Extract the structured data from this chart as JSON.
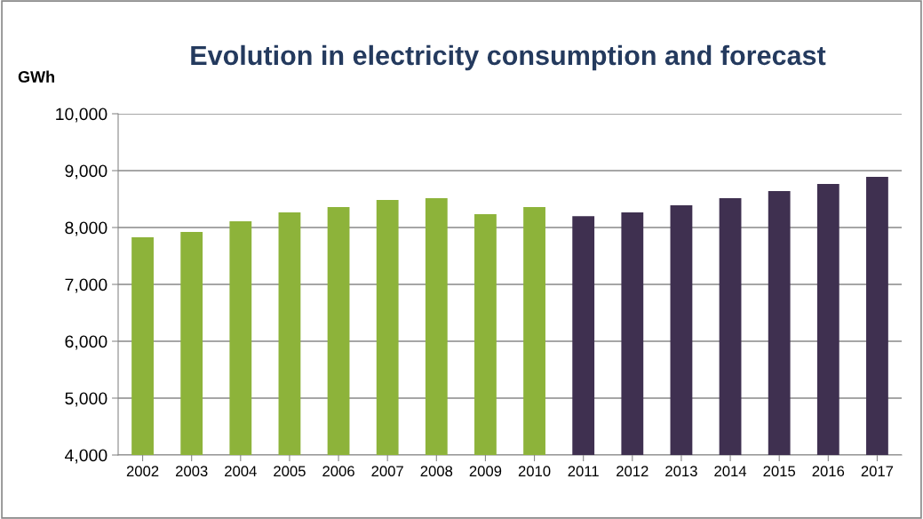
{
  "chart_data": {
    "type": "bar",
    "title": "Evolution in electricity consumption and forecast",
    "ylabel": "GWh",
    "categories": [
      "2002",
      "2003",
      "2004",
      "2005",
      "2006",
      "2007",
      "2008",
      "2009",
      "2010",
      "2011",
      "2012",
      "2013",
      "2014",
      "2015",
      "2016",
      "2017"
    ],
    "values": [
      7830,
      7920,
      8110,
      8265,
      8360,
      8485,
      8515,
      8235,
      8360,
      8200,
      8265,
      8390,
      8515,
      8640,
      8765,
      8890
    ],
    "colors": [
      "#8db33a",
      "#8db33a",
      "#8db33a",
      "#8db33a",
      "#8db33a",
      "#8db33a",
      "#8db33a",
      "#8db33a",
      "#8db33a",
      "#3f3050",
      "#3f3050",
      "#3f3050",
      "#3f3050",
      "#3f3050",
      "#3f3050",
      "#3f3050"
    ],
    "ylim": [
      4000,
      10000
    ],
    "yticks": [
      {
        "value": 4000,
        "label": "4,000"
      },
      {
        "value": 5000,
        "label": "5,000"
      },
      {
        "value": 6000,
        "label": "6,000"
      },
      {
        "value": 7000,
        "label": "7,000"
      },
      {
        "value": 8000,
        "label": "8,000"
      },
      {
        "value": 9000,
        "label": "9,000"
      },
      {
        "value": 10000,
        "label": "10,000"
      }
    ],
    "grid": "y",
    "legend": false
  }
}
